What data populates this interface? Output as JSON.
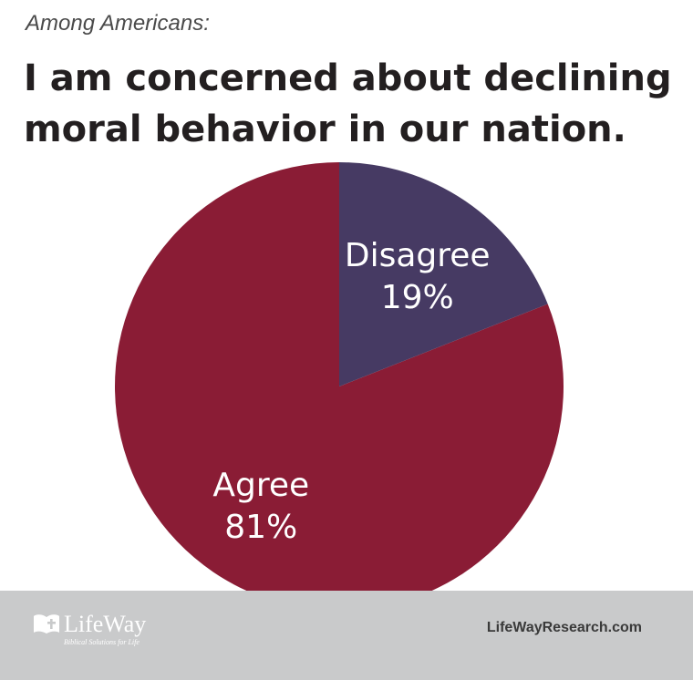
{
  "header": {
    "subtitle": "Among Americans:",
    "title": "I am concerned about declining moral behavior in our nation."
  },
  "chart_data": {
    "type": "pie",
    "title": "I am concerned about declining moral behavior in our nation.",
    "subtitle": "Among Americans:",
    "slices": [
      {
        "label": "Agree",
        "value": 81,
        "value_label": "81%",
        "color": "#8a1c35"
      },
      {
        "label": "Disagree",
        "value": 19,
        "value_label": "19%",
        "color": "#463a63"
      }
    ],
    "start_angle_deg": 90,
    "direction": "counterclockwise",
    "legend": "none"
  },
  "footer": {
    "logo_text": "LifeWay",
    "logo_tagline": "Biblical Solutions for Life",
    "site": "LifeWayResearch.com",
    "background": "#c9cacb"
  }
}
